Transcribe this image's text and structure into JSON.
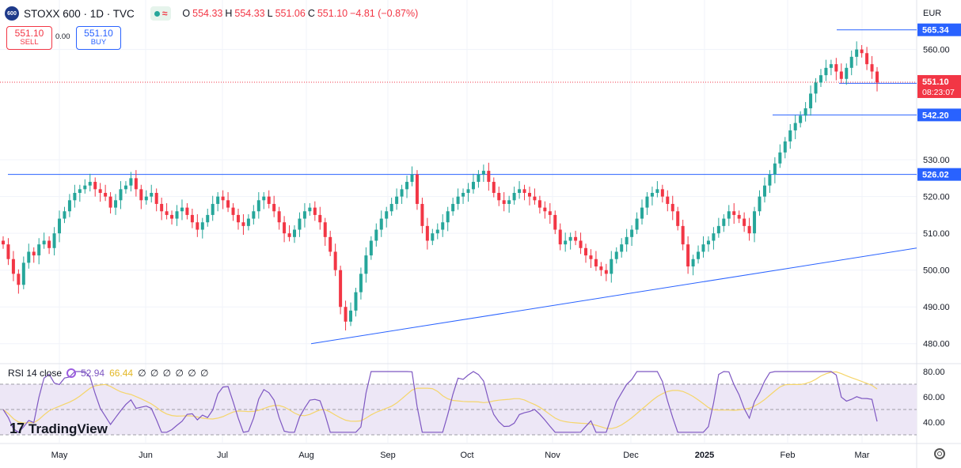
{
  "header": {
    "symbol_icon": "600",
    "title": "STOXX 600 · 1D · TVC",
    "ohlc": {
      "o_label": "O",
      "o": "554.33",
      "h_label": "H",
      "h": "554.33",
      "l_label": "L",
      "l": "551.06",
      "c_label": "C",
      "c": "551.10",
      "change": "−4.81 (−0.87%)"
    },
    "market_icons": [
      "market-open-dot-icon",
      "wave-icon"
    ]
  },
  "trade": {
    "sell_price": "551.10",
    "sell_label": "SELL",
    "spread": "0.00",
    "buy_price": "551.10",
    "buy_label": "BUY"
  },
  "currency": "EUR",
  "rsi": {
    "label": "RSI 14 close",
    "value": "52.94",
    "ma": "66.44",
    "zeros": "∅ ∅ ∅ ∅ ∅ ∅",
    "ticks": [
      "80.00",
      "60.00",
      "40.00"
    ],
    "levels": [
      70,
      30
    ],
    "colors": {
      "rsi": "#7e57c2",
      "ma": "#f5d56a",
      "band": "#ede7f6"
    }
  },
  "brand": "TradingView",
  "price_labels": {
    "current": "551.10",
    "countdown": "08:23:07",
    "line_565": "565.34",
    "line_550": "550.81",
    "line_542": "542.20",
    "line_526": "526.02"
  },
  "colors": {
    "up": "#26a69a",
    "down": "#f23645",
    "line": "#2962ff",
    "label_bg": "#2962ff"
  },
  "chart_data": {
    "type": "candlestick",
    "title": "STOXX 600 · 1D · TVC",
    "y_ticks": [
      480,
      490,
      500,
      510,
      520,
      530,
      560
    ],
    "x_ticks": [
      "May",
      "Jun",
      "Jul",
      "Aug",
      "Sep",
      "Oct",
      "Nov",
      "Dec",
      "2025",
      "Feb",
      "Mar"
    ],
    "ylim": [
      475,
      567
    ],
    "grid": true,
    "horizontal_lines": [
      565.34,
      542.2,
      526.02
    ],
    "trendline": [
      {
        "date": "2024-08-05",
        "value": 480
      },
      {
        "date": "2025-03-10",
        "value": 506
      }
    ],
    "current_price": 551.1,
    "candles_approx_close": [
      507,
      503,
      499,
      496,
      502,
      505,
      504,
      507,
      508,
      506,
      510,
      514,
      516,
      519,
      521,
      522,
      523,
      524,
      522,
      521,
      520,
      517,
      519,
      522,
      523,
      525,
      522,
      519,
      520,
      521,
      518,
      516,
      515,
      514,
      516,
      517,
      515,
      513,
      511,
      513,
      515,
      518,
      520,
      519,
      517,
      515,
      513,
      512,
      514,
      516,
      519,
      520,
      518,
      516,
      513,
      510,
      509,
      511,
      514,
      516,
      517,
      515,
      513,
      509,
      505,
      500,
      490,
      486,
      489,
      494,
      499,
      504,
      508,
      511,
      514,
      516,
      518,
      520,
      522,
      524,
      526,
      518,
      512,
      508,
      510,
      511,
      513,
      516,
      518,
      520,
      521,
      522,
      524,
      526,
      527,
      524,
      521,
      519,
      518,
      519,
      521,
      522,
      521,
      520,
      519,
      517,
      516,
      515,
      511,
      507,
      508,
      509,
      508,
      506,
      504,
      503,
      501,
      500,
      499,
      503,
      505,
      507,
      509,
      511,
      514,
      517,
      520,
      521,
      522,
      520,
      518,
      516,
      512,
      507,
      501,
      503,
      505,
      507,
      508,
      510,
      512,
      514,
      516,
      515,
      514,
      512,
      510,
      516,
      520,
      523,
      526,
      529,
      532,
      535,
      538,
      540,
      542,
      544,
      548,
      551,
      553,
      555,
      556,
      554,
      552,
      555,
      558,
      560,
      559,
      556,
      554,
      551
    ]
  }
}
